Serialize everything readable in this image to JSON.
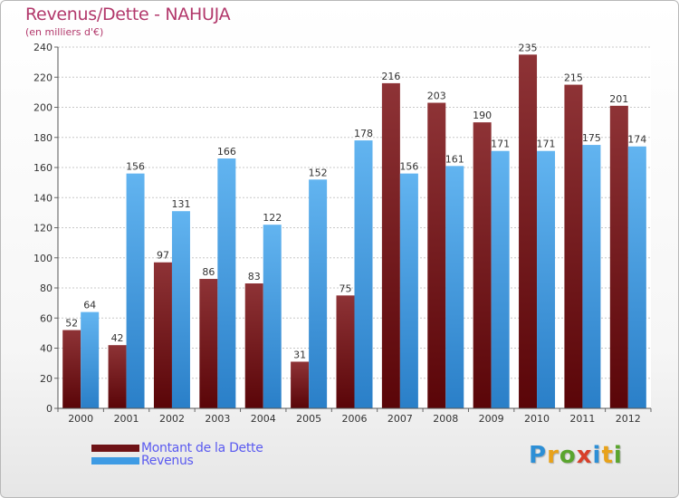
{
  "chart_data": {
    "type": "bar",
    "title": "Revenus/Dette - NAHUJA",
    "subtitle": "(en milliers d'€)",
    "categories": [
      "2000",
      "2001",
      "2002",
      "2003",
      "2004",
      "2005",
      "2006",
      "2007",
      "2008",
      "2009",
      "2010",
      "2011",
      "2012"
    ],
    "series": [
      {
        "name": "Montant de la Dette",
        "values": [
          52,
          42,
          97,
          86,
          83,
          31,
          75,
          216,
          203,
          190,
          235,
          215,
          201
        ],
        "color": "#7a1418"
      },
      {
        "name": "Revenus",
        "values": [
          64,
          156,
          131,
          166,
          122,
          152,
          178,
          156,
          161,
          171,
          171,
          175,
          174
        ],
        "color": "#3e9be4"
      }
    ],
    "ylim": [
      0,
      240
    ],
    "yticks": [
      0,
      20,
      40,
      60,
      80,
      100,
      120,
      140,
      160,
      180,
      200,
      220,
      240
    ],
    "grid": true,
    "data_labels": true,
    "legend_position": "bottom-left"
  },
  "logo": {
    "letters": [
      "P",
      "r",
      "o",
      "x",
      "i",
      "t",
      "i"
    ],
    "colors": [
      "#2d8fd6",
      "#e8a21a",
      "#5aa52e",
      "#d8402a",
      "#2d8fd6",
      "#e8a21a",
      "#5aa52e"
    ]
  }
}
